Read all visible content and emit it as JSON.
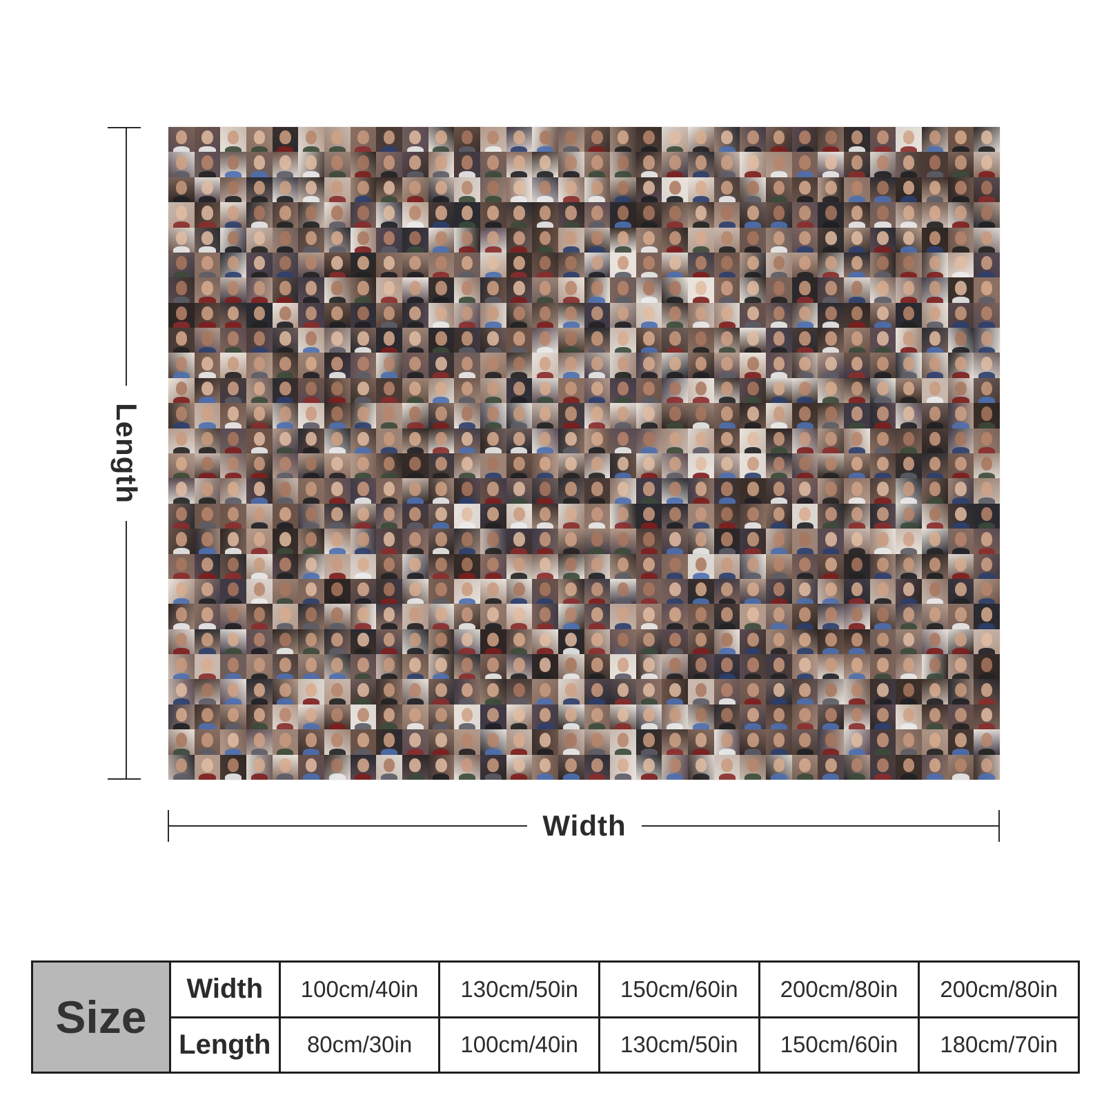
{
  "labels": {
    "length": "Length",
    "width": "Width"
  },
  "size_table": {
    "title": "Size",
    "rows": [
      {
        "label": "Width",
        "values": [
          "100cm/40in",
          "130cm/50in",
          "150cm/60in",
          "200cm/80in",
          "200cm/80in"
        ]
      },
      {
        "label": "Length",
        "values": [
          "80cm/30in",
          "100cm/40in",
          "130cm/50in",
          "150cm/60in",
          "180cm/70in"
        ]
      }
    ]
  },
  "colors": {
    "line": "#2b2b2b",
    "size_cell_bg": "#b8b8b8",
    "table_border": "#1e1e1e"
  }
}
